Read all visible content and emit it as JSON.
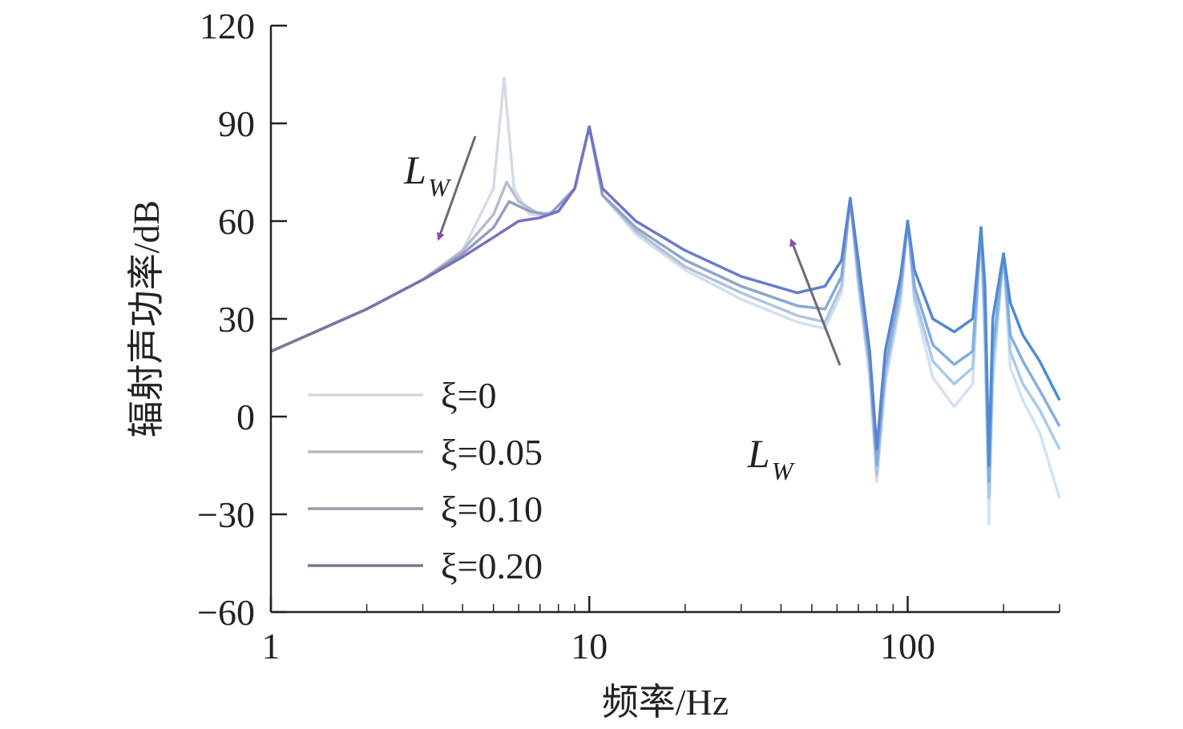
{
  "chart_data": {
    "type": "line",
    "xscale": "log",
    "xlabel": "频率/Hz",
    "ylabel": "辐射声功率/dB",
    "xlim": [
      1,
      300
    ],
    "ylim": [
      -60,
      120
    ],
    "xticks": [
      1,
      10,
      100
    ],
    "xtick_labels": [
      "1",
      "10",
      "100"
    ],
    "yticks": [
      -60,
      -30,
      0,
      30,
      60,
      90,
      120
    ],
    "ytick_labels": [
      "−60",
      "−30",
      "0",
      "30",
      "60",
      "90",
      "120"
    ],
    "grid": false,
    "legend_position": "left",
    "series": [
      {
        "name": "ξ=0",
        "color": "#d8d8de",
        "points": [
          [
            1,
            20
          ],
          [
            2,
            33
          ],
          [
            3,
            42
          ],
          [
            4,
            51
          ],
          [
            5,
            70
          ],
          [
            5.4,
            104
          ],
          [
            5.8,
            70
          ],
          [
            6.5,
            62
          ],
          [
            7.5,
            62
          ],
          [
            9,
            70
          ],
          [
            10,
            89
          ],
          [
            11,
            68
          ],
          [
            14,
            56
          ],
          [
            20,
            45
          ],
          [
            30,
            36
          ],
          [
            45,
            29
          ],
          [
            55,
            27
          ],
          [
            62,
            38
          ],
          [
            66,
            67
          ],
          [
            70,
            40
          ],
          [
            76,
            12
          ],
          [
            80,
            -20
          ],
          [
            85,
            10
          ],
          [
            95,
            35
          ],
          [
            100,
            60
          ],
          [
            105,
            35
          ],
          [
            120,
            12
          ],
          [
            140,
            3
          ],
          [
            160,
            10
          ],
          [
            170,
            58
          ],
          [
            175,
            20
          ],
          [
            180,
            -33
          ],
          [
            185,
            10
          ],
          [
            200,
            50
          ],
          [
            210,
            15
          ],
          [
            230,
            5
          ],
          [
            260,
            -5
          ],
          [
            300,
            -25
          ]
        ]
      },
      {
        "name": "ξ=0.05",
        "color": "#b8b8c4",
        "points": [
          [
            1,
            20
          ],
          [
            2,
            33
          ],
          [
            3,
            42
          ],
          [
            4,
            51
          ],
          [
            5,
            62
          ],
          [
            5.5,
            72
          ],
          [
            6,
            66
          ],
          [
            7,
            62
          ],
          [
            8,
            63
          ],
          [
            9,
            70
          ],
          [
            10,
            89
          ],
          [
            11,
            68
          ],
          [
            14,
            57
          ],
          [
            20,
            46
          ],
          [
            30,
            38
          ],
          [
            45,
            31
          ],
          [
            55,
            29
          ],
          [
            62,
            40
          ],
          [
            66,
            67
          ],
          [
            70,
            42
          ],
          [
            76,
            14
          ],
          [
            80,
            -18
          ],
          [
            85,
            12
          ],
          [
            95,
            37
          ],
          [
            100,
            60
          ],
          [
            105,
            37
          ],
          [
            120,
            17
          ],
          [
            140,
            10
          ],
          [
            160,
            15
          ],
          [
            170,
            58
          ],
          [
            175,
            25
          ],
          [
            180,
            -25
          ],
          [
            185,
            15
          ],
          [
            200,
            50
          ],
          [
            210,
            20
          ],
          [
            230,
            10
          ],
          [
            260,
            2
          ],
          [
            300,
            -10
          ]
        ]
      },
      {
        "name": "ξ=0.10",
        "color": "#9a9aac",
        "points": [
          [
            1,
            20
          ],
          [
            2,
            33
          ],
          [
            3,
            42
          ],
          [
            4,
            50
          ],
          [
            5,
            58
          ],
          [
            5.6,
            66
          ],
          [
            6.5,
            63
          ],
          [
            7.5,
            62
          ],
          [
            9,
            70
          ],
          [
            10,
            89
          ],
          [
            11,
            68
          ],
          [
            14,
            58
          ],
          [
            20,
            48
          ],
          [
            30,
            40
          ],
          [
            45,
            34
          ],
          [
            55,
            33
          ],
          [
            62,
            43
          ],
          [
            66,
            67
          ],
          [
            70,
            44
          ],
          [
            76,
            17
          ],
          [
            80,
            -15
          ],
          [
            85,
            15
          ],
          [
            95,
            40
          ],
          [
            100,
            60
          ],
          [
            105,
            40
          ],
          [
            120,
            22
          ],
          [
            140,
            16
          ],
          [
            160,
            20
          ],
          [
            170,
            58
          ],
          [
            175,
            30
          ],
          [
            180,
            -20
          ],
          [
            185,
            20
          ],
          [
            200,
            50
          ],
          [
            210,
            25
          ],
          [
            230,
            17
          ],
          [
            260,
            8
          ],
          [
            300,
            -3
          ]
        ]
      },
      {
        "name": "ξ=0.20",
        "color": "#787890",
        "points": [
          [
            1,
            20
          ],
          [
            2,
            33
          ],
          [
            3,
            42
          ],
          [
            4,
            49
          ],
          [
            5,
            55
          ],
          [
            6,
            60
          ],
          [
            7,
            61
          ],
          [
            8,
            63
          ],
          [
            9,
            70
          ],
          [
            10,
            89
          ],
          [
            11,
            70
          ],
          [
            14,
            60
          ],
          [
            20,
            51
          ],
          [
            30,
            43
          ],
          [
            45,
            38
          ],
          [
            55,
            40
          ],
          [
            62,
            48
          ],
          [
            66,
            67
          ],
          [
            70,
            48
          ],
          [
            76,
            20
          ],
          [
            80,
            -10
          ],
          [
            85,
            20
          ],
          [
            95,
            43
          ],
          [
            100,
            60
          ],
          [
            105,
            45
          ],
          [
            120,
            30
          ],
          [
            140,
            26
          ],
          [
            160,
            30
          ],
          [
            170,
            58
          ],
          [
            175,
            40
          ],
          [
            180,
            -15
          ],
          [
            185,
            30
          ],
          [
            200,
            50
          ],
          [
            210,
            35
          ],
          [
            230,
            25
          ],
          [
            260,
            17
          ],
          [
            300,
            5
          ]
        ]
      }
    ],
    "annotations": [
      {
        "main": "L",
        "sub": "W",
        "x": 3.5,
        "y": 75
      },
      {
        "main": "L",
        "sub": "W",
        "x": 42,
        "y": -12
      }
    ]
  }
}
